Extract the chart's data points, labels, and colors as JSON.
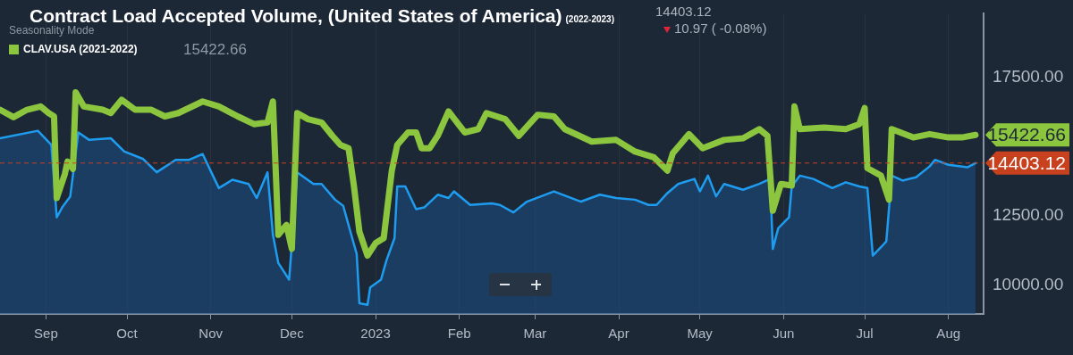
{
  "chart_data": {
    "type": "line",
    "title": "Contract Load Accepted Volume, (United States of America)",
    "subtitle": "(2022-2023)",
    "legend_title": "Seasonality Mode",
    "legend": "top left",
    "grid": "x",
    "xlim": [
      "2022-08-15",
      "2023-08-14"
    ],
    "xticks": [
      {
        "value": "2022-09-01",
        "label": "Sep"
      },
      {
        "value": "2022-10-01",
        "label": "Oct"
      },
      {
        "value": "2022-11-01",
        "label": "Nov"
      },
      {
        "value": "2022-12-01",
        "label": "Dec"
      },
      {
        "value": "2023-01-01",
        "label": "2023"
      },
      {
        "value": "2023-02-01",
        "label": "Feb"
      },
      {
        "value": "2023-03-01",
        "label": "Mar"
      },
      {
        "value": "2023-04-01",
        "label": "Apr"
      },
      {
        "value": "2023-05-01",
        "label": "May"
      },
      {
        "value": "2023-06-01",
        "label": "Jun"
      },
      {
        "value": "2023-07-01",
        "label": "Jul"
      },
      {
        "value": "2023-08-01",
        "label": "Aug"
      }
    ],
    "ylim": [
      8950,
      19800
    ],
    "yticks": [
      {
        "value": 10000,
        "label": "10000.00"
      },
      {
        "value": 12500,
        "label": "12500.00"
      },
      {
        "value": 17500,
        "label": "17500.00"
      }
    ],
    "series": [
      {
        "type": "area",
        "color": "#1e9cf0",
        "x": [
          "2022-08-15",
          "2022-08-29",
          "2022-09-03",
          "2022-09-05",
          "2022-09-07",
          "2022-09-10",
          "2022-09-13",
          "2022-09-17",
          "2022-09-25",
          "2022-09-30",
          "2022-10-07",
          "2022-10-12",
          "2022-10-19",
          "2022-10-24",
          "2022-10-29",
          "2022-11-04",
          "2022-11-09",
          "2022-11-15",
          "2022-11-18",
          "2022-11-22",
          "2022-11-24",
          "2022-11-26",
          "2022-11-30",
          "2022-12-03",
          "2022-12-09",
          "2022-12-12",
          "2022-12-17",
          "2022-12-20",
          "2022-12-23",
          "2022-12-25",
          "2022-12-26",
          "2022-12-29",
          "2022-12-30",
          "2023-01-03",
          "2023-01-05",
          "2023-01-08",
          "2023-01-09",
          "2023-01-12",
          "2023-01-16",
          "2023-01-19",
          "2023-01-24",
          "2023-01-28",
          "2023-01-30",
          "2023-02-05",
          "2023-02-13",
          "2023-02-16",
          "2023-02-21",
          "2023-02-26",
          "2023-03-08",
          "2023-03-18",
          "2023-03-25",
          "2023-03-31",
          "2023-04-07",
          "2023-04-12",
          "2023-04-15",
          "2023-04-19",
          "2023-04-23",
          "2023-04-29",
          "2023-05-01",
          "2023-05-04",
          "2023-05-07",
          "2023-05-10",
          "2023-05-17",
          "2023-05-23",
          "2023-05-27",
          "2023-05-28",
          "2023-05-30",
          "2023-06-03",
          "2023-06-04",
          "2023-06-07",
          "2023-06-12",
          "2023-06-19",
          "2023-06-24",
          "2023-06-29",
          "2023-07-02",
          "2023-07-04",
          "2023-07-07",
          "2023-07-09",
          "2023-07-11",
          "2023-07-15",
          "2023-07-20",
          "2023-07-25",
          "2023-07-27",
          "2023-08-01",
          "2023-08-08",
          "2023-08-11"
        ],
        "values": [
          15300,
          15570,
          15060,
          12440,
          12800,
          13200,
          15510,
          15240,
          15300,
          14820,
          14550,
          14070,
          14520,
          14520,
          14730,
          13500,
          13800,
          13650,
          13140,
          14070,
          11810,
          10790,
          10190,
          14070,
          13650,
          13650,
          13080,
          12860,
          11810,
          11120,
          9340,
          9280,
          9910,
          10190,
          10880,
          11690,
          13560,
          13560,
          12740,
          12800,
          13260,
          13140,
          13380,
          12890,
          12950,
          12890,
          12620,
          13010,
          13380,
          13010,
          13260,
          13140,
          13080,
          12890,
          12890,
          13320,
          13650,
          13830,
          13380,
          13950,
          13200,
          13650,
          13440,
          13650,
          13830,
          11300,
          12050,
          12440,
          13560,
          13950,
          13830,
          13500,
          13710,
          13560,
          13500,
          11060,
          11360,
          11570,
          13950,
          13770,
          13890,
          14280,
          14520,
          14340,
          14250,
          14403.12
        ]
      },
      {
        "type": "line",
        "name": "CLAV.USA (2021-2022)",
        "color": "#8cc63f",
        "x": [
          "2022-08-15",
          "2022-08-20",
          "2022-08-25",
          "2022-08-30",
          "2022-09-02",
          "2022-09-04",
          "2022-09-05",
          "2022-09-08",
          "2022-09-09",
          "2022-09-11",
          "2022-09-12",
          "2022-09-15",
          "2022-09-22",
          "2022-09-25",
          "2022-09-29",
          "2022-10-04",
          "2022-10-10",
          "2022-10-15",
          "2022-10-20",
          "2022-10-29",
          "2022-11-04",
          "2022-11-11",
          "2022-11-17",
          "2022-11-22",
          "2022-11-24",
          "2022-11-26",
          "2022-11-29",
          "2022-12-01",
          "2022-12-03",
          "2022-12-07",
          "2022-12-12",
          "2022-12-16",
          "2022-12-19",
          "2022-12-22",
          "2022-12-24",
          "2022-12-26",
          "2022-12-29",
          "2023-01-01",
          "2023-01-04",
          "2023-01-07",
          "2023-01-09",
          "2023-01-13",
          "2023-01-16",
          "2023-01-18",
          "2023-01-21",
          "2023-01-24",
          "2023-01-28",
          "2023-02-03",
          "2023-02-08",
          "2023-02-11",
          "2023-02-18",
          "2023-02-23",
          "2023-03-02",
          "2023-03-08",
          "2023-03-12",
          "2023-03-22",
          "2023-03-31",
          "2023-04-07",
          "2023-04-14",
          "2023-04-19",
          "2023-04-21",
          "2023-04-27",
          "2023-05-02",
          "2023-05-10",
          "2023-05-17",
          "2023-05-23",
          "2023-05-26",
          "2023-05-28",
          "2023-05-31",
          "2023-06-04",
          "2023-06-05",
          "2023-06-07",
          "2023-06-16",
          "2023-06-24",
          "2023-06-29",
          "2023-07-01",
          "2023-07-02",
          "2023-07-07",
          "2023-07-10",
          "2023-07-11",
          "2023-07-19",
          "2023-07-25",
          "2023-08-01",
          "2023-08-06",
          "2023-08-11"
        ],
        "values": [
          16330,
          16060,
          16330,
          16450,
          16210,
          16090,
          13140,
          14010,
          14460,
          14190,
          16960,
          16450,
          16330,
          16210,
          16690,
          16330,
          16330,
          16090,
          16210,
          16630,
          16450,
          16090,
          15810,
          15870,
          16630,
          11810,
          12170,
          11300,
          16210,
          15990,
          15870,
          15390,
          15060,
          14940,
          13560,
          11930,
          11060,
          11510,
          11690,
          14130,
          15060,
          15510,
          15510,
          14940,
          14940,
          15390,
          16270,
          15510,
          15630,
          16210,
          15990,
          15390,
          16150,
          16090,
          15630,
          15180,
          15240,
          14820,
          14610,
          14130,
          14760,
          15450,
          14940,
          15240,
          15300,
          15630,
          15390,
          12680,
          13650,
          13590,
          16450,
          15630,
          15690,
          15630,
          15810,
          16390,
          14220,
          13950,
          13080,
          15630,
          15330,
          15450,
          15330,
          15330,
          15422.66
        ]
      }
    ],
    "ref_lines": [
      {
        "axis": "y",
        "value": 14403.12,
        "label": "14403.12",
        "color": "#c8411f",
        "line_style": "dashed"
      }
    ],
    "annotations": [
      "14403.12",
      "10.97 ( -0.08%)",
      "15422.66",
      {
        "text": "15422.66",
        "x": "2023-08-11",
        "y": 15422.66
      }
    ]
  }
}
